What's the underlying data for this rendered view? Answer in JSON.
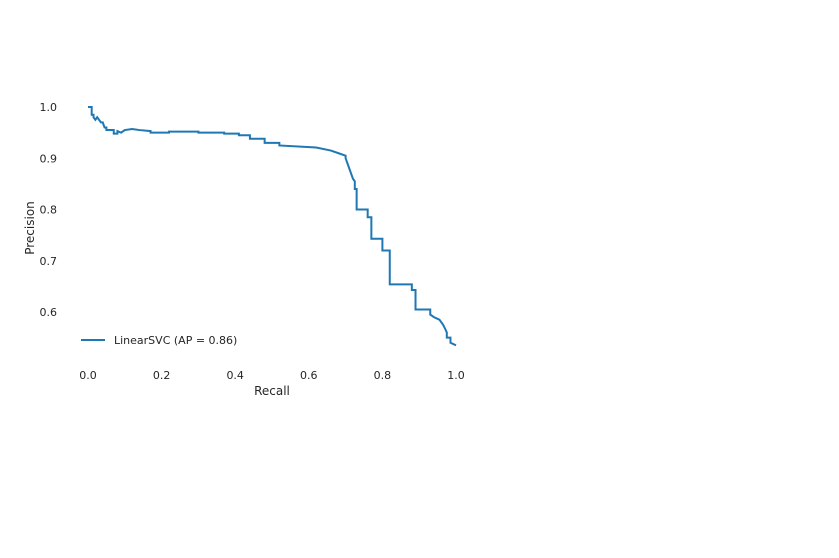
{
  "chart_data": {
    "type": "line",
    "title": "",
    "xlabel": "Recall",
    "ylabel": "Precision",
    "xlim": [
      -0.02,
      1.02
    ],
    "ylim": [
      0.5,
      1.02
    ],
    "grid": false,
    "legend_position": "lower-left",
    "xticks": [
      {
        "value": 0.0,
        "label": "0.0"
      },
      {
        "value": 0.2,
        "label": "0.2"
      },
      {
        "value": 0.4,
        "label": "0.4"
      },
      {
        "value": 0.6,
        "label": "0.6"
      },
      {
        "value": 0.8,
        "label": "0.8"
      },
      {
        "value": 1.0,
        "label": "1.0"
      }
    ],
    "yticks": [
      {
        "value": 0.6,
        "label": "0.6"
      },
      {
        "value": 0.7,
        "label": "0.7"
      },
      {
        "value": 0.8,
        "label": "0.8"
      },
      {
        "value": 0.9,
        "label": "0.9"
      },
      {
        "value": 1.0,
        "label": "1.0"
      }
    ],
    "series": [
      {
        "name": "LinearSVC (AP = 0.86)",
        "color": "#1f77b4",
        "x": [
          0.0,
          0.01,
          0.01,
          0.015,
          0.015,
          0.02,
          0.025,
          0.03,
          0.035,
          0.04,
          0.045,
          0.05,
          0.05,
          0.07,
          0.07,
          0.08,
          0.08,
          0.09,
          0.1,
          0.12,
          0.14,
          0.17,
          0.17,
          0.22,
          0.22,
          0.3,
          0.3,
          0.37,
          0.37,
          0.41,
          0.41,
          0.44,
          0.44,
          0.48,
          0.48,
          0.52,
          0.52,
          0.62,
          0.66,
          0.68,
          0.7,
          0.7,
          0.71,
          0.715,
          0.72,
          0.725,
          0.725,
          0.73,
          0.73,
          0.76,
          0.76,
          0.77,
          0.77,
          0.8,
          0.8,
          0.82,
          0.82,
          0.88,
          0.88,
          0.89,
          0.89,
          0.93,
          0.93,
          0.94,
          0.955,
          0.965,
          0.97,
          0.975,
          0.975,
          0.985,
          0.985,
          1.0
        ],
        "y": [
          1.0,
          1.0,
          0.985,
          0.985,
          0.98,
          0.975,
          0.98,
          0.975,
          0.97,
          0.97,
          0.96,
          0.96,
          0.955,
          0.955,
          0.948,
          0.948,
          0.953,
          0.95,
          0.955,
          0.957,
          0.955,
          0.953,
          0.95,
          0.95,
          0.952,
          0.952,
          0.95,
          0.95,
          0.948,
          0.948,
          0.945,
          0.945,
          0.938,
          0.938,
          0.93,
          0.93,
          0.925,
          0.921,
          0.915,
          0.91,
          0.905,
          0.9,
          0.88,
          0.87,
          0.86,
          0.855,
          0.84,
          0.84,
          0.8,
          0.8,
          0.785,
          0.785,
          0.743,
          0.743,
          0.72,
          0.72,
          0.654,
          0.654,
          0.643,
          0.643,
          0.605,
          0.605,
          0.595,
          0.59,
          0.585,
          0.575,
          0.568,
          0.56,
          0.55,
          0.55,
          0.54,
          0.535
        ]
      }
    ]
  }
}
